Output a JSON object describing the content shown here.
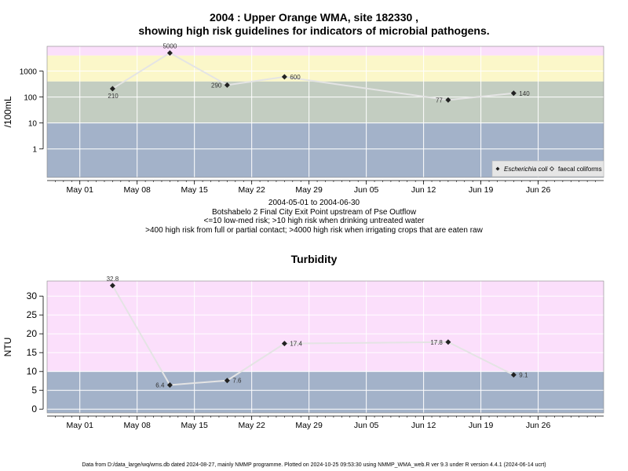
{
  "page": {
    "title_line1": "2004 : Upper Orange WMA, site 182330 ,",
    "title_line2": "showing high risk guidelines for indicators of microbial pathogens.",
    "caption_line1": "2004-05-01 to 2004-06-30",
    "caption_line2": "Botshabelo 2 Final City Exit Point upstream of Pse Outflow",
    "caption_line3": "<=10 low-med risk; >10 high risk when drinking untreated water",
    "caption_line4": ">400 high risk from full or partial contact; >4000 high risk when irrigating crops that are eaten raw",
    "turbidity_title": "Turbidity",
    "footer": "Data from D:/data_large/wq/wms.db dated 2024-08-27, mainly NMMP programme. Plotted on 2024-10-25 09:53:30 using NMMP_WMA_web.R ver 9.3 under R version 4.4.1 (2024-06-14 ucrt)"
  },
  "colors": {
    "band_blue": "#a3b2c9",
    "band_green": "#c3cdc1",
    "band_yellow": "#fbf7c9",
    "band_pink": "#fbdffb",
    "line": "#e4e4e4",
    "grid": "#ffffff",
    "point": "#222222"
  },
  "x_axis": {
    "start": "2004-04-27",
    "end": "2004-07-04",
    "ticks": [
      "2004-05-01",
      "2004-05-08",
      "2004-05-15",
      "2004-05-22",
      "2004-05-29",
      "2004-06-05",
      "2004-06-12",
      "2004-06-19",
      "2004-06-26"
    ],
    "tick_labels": [
      "May 01",
      "May 08",
      "May 15",
      "May 22",
      "May 29",
      "Jun 05",
      "Jun 12",
      "Jun 19",
      "Jun 26"
    ]
  },
  "chart_data": [
    {
      "type": "line",
      "title": "2004 : Upper Orange WMA, site 182330 , showing high risk guidelines for indicators of microbial pathogens.",
      "ylabel": "/100mL",
      "y_scale": "log10",
      "yticks": [
        1,
        10,
        100,
        1000
      ],
      "ytick_labels": [
        "1",
        "10",
        "100",
        "1000"
      ],
      "bands": [
        {
          "from": 0.08,
          "to": 10,
          "color": "band_blue"
        },
        {
          "from": 10,
          "to": 400,
          "color": "band_green"
        },
        {
          "from": 400,
          "to": 4000,
          "color": "band_yellow"
        },
        {
          "from": 4000,
          "to": 9000,
          "color": "band_pink"
        }
      ],
      "legend": {
        "placement": "bottom-right",
        "entries": [
          "Escherichia coli",
          "faecal coliforms"
        ]
      },
      "series": [
        {
          "name": "Escherichia coli",
          "x": [
            "2004-05-05",
            "2004-05-12",
            "2004-05-19",
            "2004-05-26",
            "2004-06-15",
            "2004-06-23"
          ],
          "y": [
            210,
            5000,
            290,
            600,
            77,
            140
          ],
          "labels": [
            "210",
            "5000",
            "290",
            "600",
            "77",
            "140"
          ]
        }
      ]
    },
    {
      "type": "line",
      "title": "Turbidity",
      "ylabel": "NTU",
      "ylim": [
        -1,
        34
      ],
      "yticks": [
        0,
        5,
        10,
        15,
        20,
        25,
        30
      ],
      "ytick_labels": [
        "0",
        "5",
        "10",
        "15",
        "20",
        "25",
        "30"
      ],
      "bands": [
        {
          "from": -1,
          "to": 10,
          "color": "band_blue"
        },
        {
          "from": 10,
          "to": 34,
          "color": "band_pink"
        }
      ],
      "series": [
        {
          "x": [
            "2004-05-05",
            "2004-05-12",
            "2004-05-19",
            "2004-05-26",
            "2004-06-15",
            "2004-06-23"
          ],
          "y": [
            32.8,
            6.4,
            7.6,
            17.4,
            17.8,
            9.1
          ],
          "labels": [
            "32.8",
            "6.4",
            "7.6",
            "17.4",
            "17.8",
            "9.1"
          ]
        }
      ]
    }
  ]
}
